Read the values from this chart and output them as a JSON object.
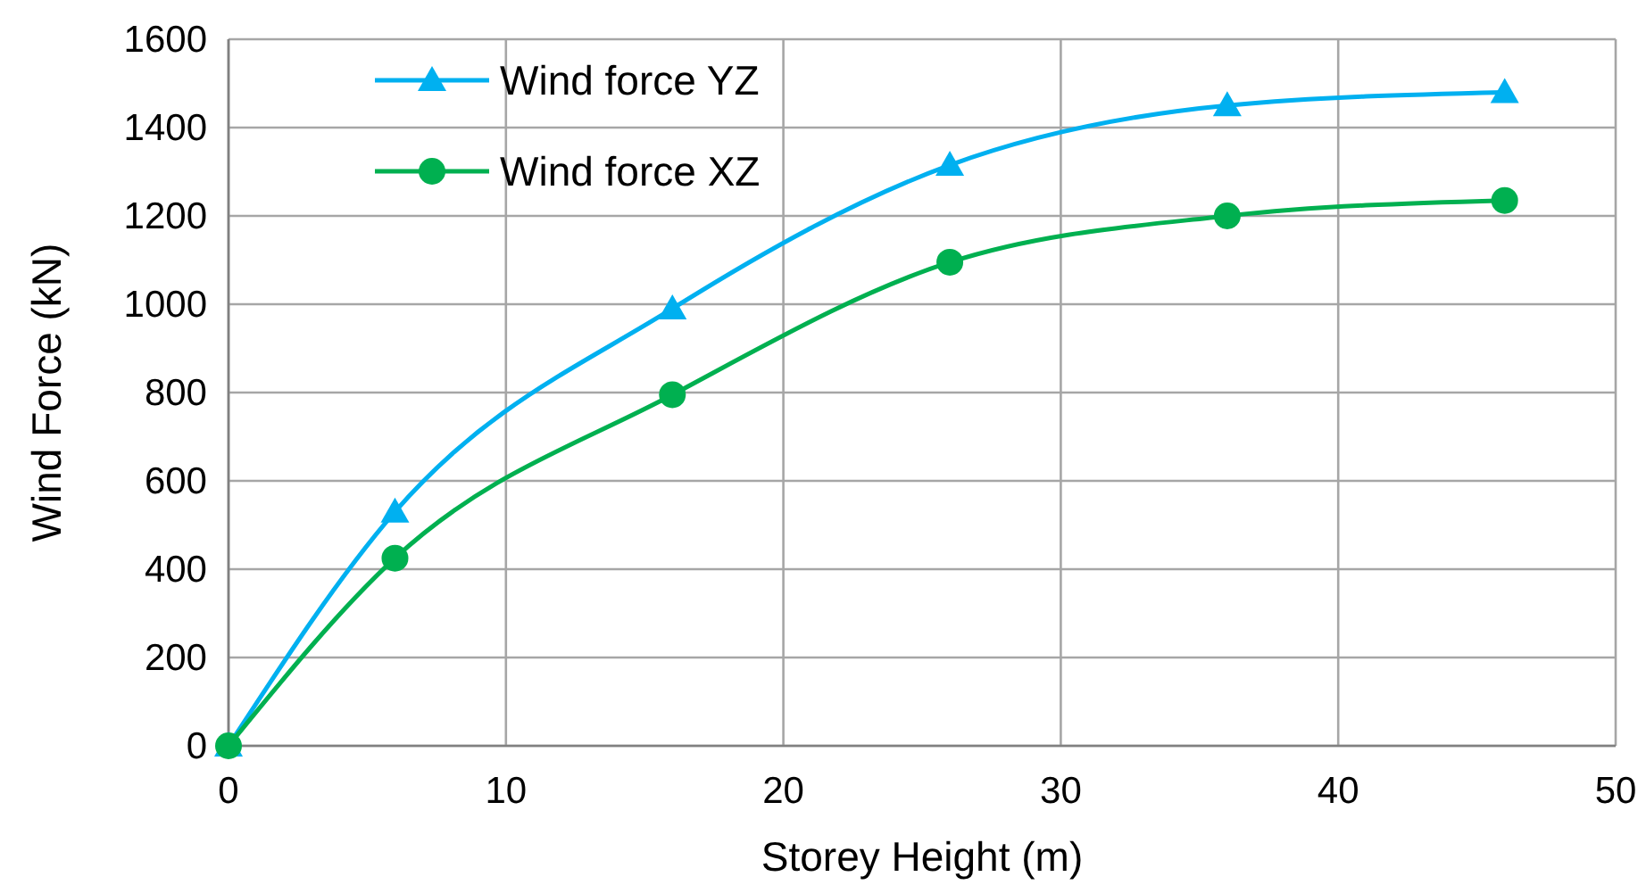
{
  "chart_data": {
    "type": "line",
    "xlabel": "Storey Height (m)",
    "ylabel": "Wind Force (kN)",
    "x": [
      0,
      6,
      16,
      26,
      36,
      46
    ],
    "xlim": [
      0,
      50
    ],
    "xticks": [
      0,
      10,
      20,
      30,
      40,
      50
    ],
    "ylim": [
      0,
      1600
    ],
    "yticks": [
      0,
      200,
      400,
      600,
      800,
      1000,
      1200,
      1400,
      1600
    ],
    "grid": true,
    "legend": "top left",
    "series": [
      {
        "name": "Wind force YZ",
        "color": "#00b0f0",
        "marker": "triangle",
        "values": [
          0,
          530,
          990,
          1315,
          1450,
          1480
        ]
      },
      {
        "name": "Wind force XZ",
        "color": "#00b050",
        "marker": "circle",
        "values": [
          0,
          425,
          795,
          1095,
          1200,
          1235
        ]
      }
    ]
  }
}
